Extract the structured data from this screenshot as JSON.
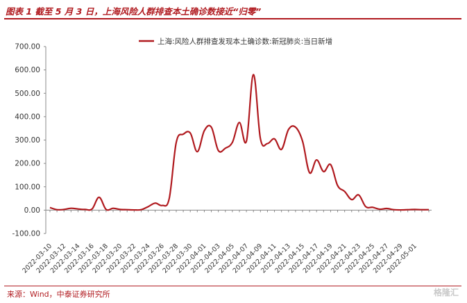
{
  "header": {
    "title": "图表 1 截至 5 月 3 日，上海风险人群排查本土确诊数接近“归零”"
  },
  "footer": {
    "source": "来源：Wind，中泰证券研究所",
    "watermark": "格隆汇"
  },
  "chart_data": {
    "type": "line",
    "title": "",
    "xlabel": "",
    "ylabel": "",
    "ylim": [
      -100,
      700
    ],
    "yticks": [
      "-100.00",
      "0.00",
      "100.00",
      "200.00",
      "300.00",
      "400.00",
      "500.00",
      "600.00",
      "700.00"
    ],
    "grid": false,
    "legend_position": "top",
    "xtick_labels": [
      "2022-03-10",
      "2022-03-12",
      "2022-03-14",
      "2022-03-16",
      "2022-03-18",
      "2022-03-20",
      "2022-03-22",
      "2022-03-24",
      "2022-03-26",
      "2022-03-28",
      "2022-03-30",
      "2022-04-01",
      "2022-04-03",
      "2022-04-05",
      "2022-04-07",
      "2022-04-09",
      "2022-04-11",
      "2022-04-13",
      "2022-04-15",
      "2022-04-17",
      "2022-04-19",
      "2022-04-21",
      "2022-04-23",
      "2022-04-25",
      "2022-04-27",
      "2022-04-29",
      "2022-05-01"
    ],
    "x": [
      "2022-03-10",
      "2022-03-11",
      "2022-03-12",
      "2022-03-13",
      "2022-03-14",
      "2022-03-15",
      "2022-03-16",
      "2022-03-17",
      "2022-03-18",
      "2022-03-19",
      "2022-03-20",
      "2022-03-21",
      "2022-03-22",
      "2022-03-23",
      "2022-03-24",
      "2022-03-25",
      "2022-03-26",
      "2022-03-27",
      "2022-03-28",
      "2022-03-29",
      "2022-03-30",
      "2022-03-31",
      "2022-04-01",
      "2022-04-02",
      "2022-04-03",
      "2022-04-04",
      "2022-04-05",
      "2022-04-06",
      "2022-04-07",
      "2022-04-08",
      "2022-04-09",
      "2022-04-10",
      "2022-04-11",
      "2022-04-12",
      "2022-04-13",
      "2022-04-14",
      "2022-04-15",
      "2022-04-16",
      "2022-04-17",
      "2022-04-18",
      "2022-04-19",
      "2022-04-20",
      "2022-04-21",
      "2022-04-22",
      "2022-04-23",
      "2022-04-24",
      "2022-04-25",
      "2022-04-26",
      "2022-04-27",
      "2022-04-28",
      "2022-04-29",
      "2022-04-30",
      "2022-05-01",
      "2022-05-02",
      "2022-05-03"
    ],
    "series": [
      {
        "name": "上海:风险人群排查发现本土确诊数:新冠肺炎:当日新增",
        "color": "#b0191e",
        "values": [
          11,
          2,
          3,
          8,
          5,
          3,
          5,
          55,
          3,
          8,
          3,
          2,
          1,
          2,
          15,
          30,
          20,
          50,
          290,
          325,
          330,
          250,
          340,
          355,
          255,
          265,
          290,
          375,
          295,
          580,
          305,
          285,
          305,
          260,
          345,
          355,
          295,
          160,
          215,
          165,
          195,
          105,
          80,
          45,
          65,
          15,
          12,
          4,
          7,
          2,
          1,
          2,
          3,
          2,
          2
        ]
      }
    ]
  }
}
